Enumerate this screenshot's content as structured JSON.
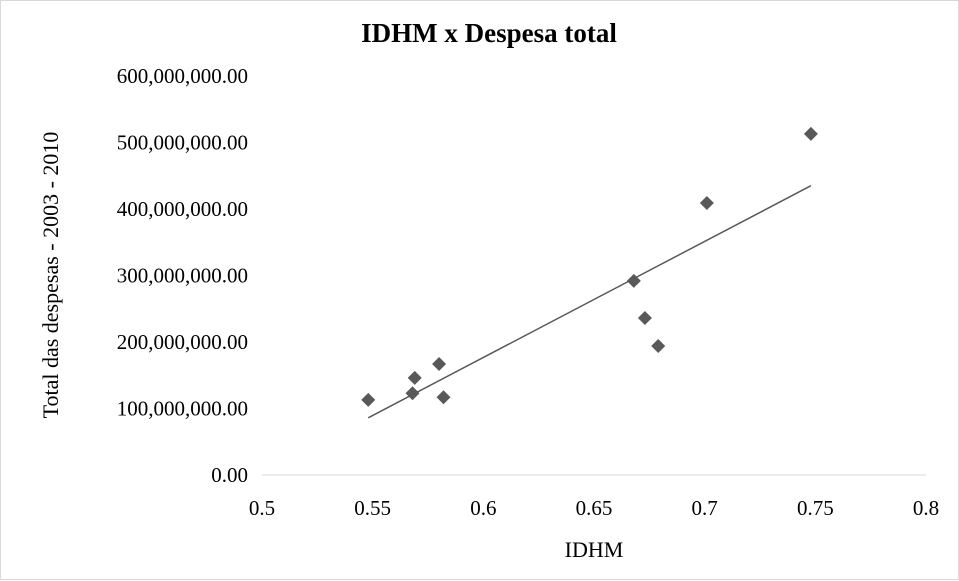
{
  "chart_data": {
    "type": "scatter",
    "title": "IDHM x Despesa total",
    "xlabel": "IDHM",
    "ylabel": "Total das despesas - 2003 - 2010",
    "xlim": [
      0.5,
      0.8
    ],
    "ylim": [
      0,
      600000000
    ],
    "x_ticks": [
      "0.5",
      "0.55",
      "0.6",
      "0.65",
      "0.7",
      "0.75",
      "0.8"
    ],
    "y_ticks": [
      "0.00",
      "100,000,000.00",
      "200,000,000.00",
      "300,000,000.00",
      "400,000,000.00",
      "500,000,000.00",
      "600,000,000.00"
    ],
    "grid": false,
    "legend": "none",
    "marker": "diamond",
    "marker_color": "#595959",
    "points": [
      {
        "x": 0.548,
        "y": 113000000
      },
      {
        "x": 0.568,
        "y": 123000000
      },
      {
        "x": 0.569,
        "y": 146000000
      },
      {
        "x": 0.58,
        "y": 167000000
      },
      {
        "x": 0.582,
        "y": 117000000
      },
      {
        "x": 0.668,
        "y": 292000000
      },
      {
        "x": 0.673,
        "y": 236000000
      },
      {
        "x": 0.679,
        "y": 194000000
      },
      {
        "x": 0.701,
        "y": 409000000
      },
      {
        "x": 0.748,
        "y": 513000000
      }
    ],
    "trendline": {
      "type": "linear",
      "color": "#595959",
      "from": {
        "x": 0.548,
        "y": 86000000
      },
      "to": {
        "x": 0.748,
        "y": 435000000
      }
    }
  }
}
